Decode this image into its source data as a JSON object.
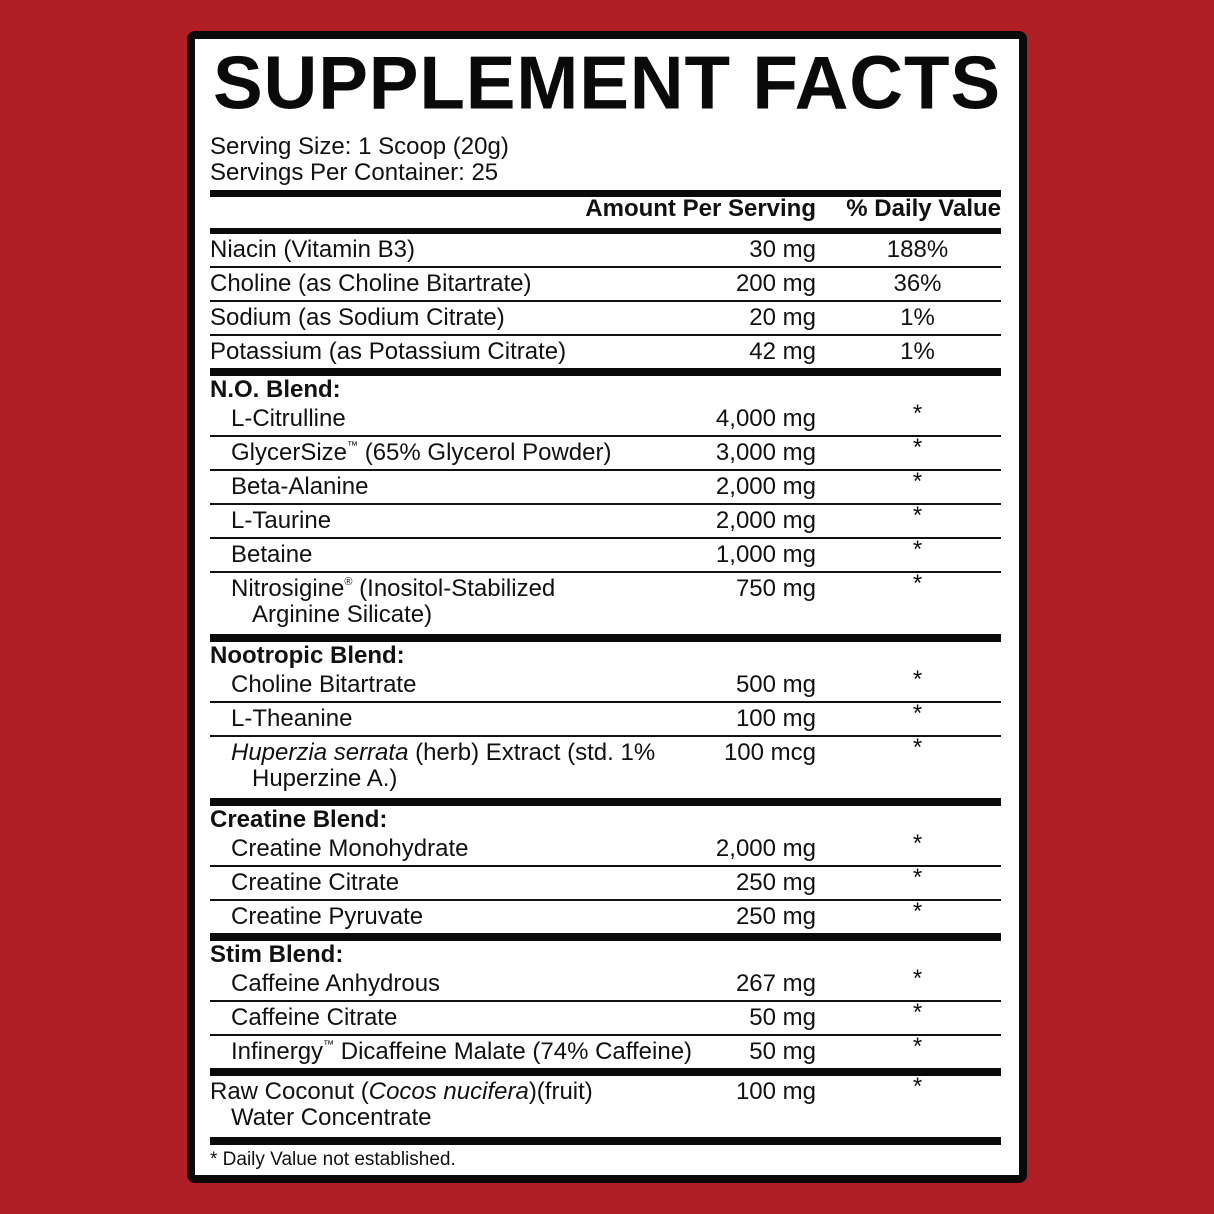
{
  "title": "SUPPLEMENT FACTS",
  "serving_size": "Serving Size: 1 Scoop (20g)",
  "servings_per_container": "Servings Per Container: 25",
  "header": {
    "amount": "Amount Per Serving",
    "dv": "% Daily Value"
  },
  "colors": {
    "background": "#b01f25",
    "panel": "#ffffff",
    "ink": "#0a0a0a"
  },
  "vitamins": [
    {
      "name": [
        [
          {
            "t": "Niacin (Vitamin B3)"
          }
        ]
      ],
      "amount": "30 mg",
      "dv": "188%"
    },
    {
      "name": [
        [
          {
            "t": "Choline (as Choline Bitartrate)"
          }
        ]
      ],
      "amount": "200 mg",
      "dv": "36%"
    },
    {
      "name": [
        [
          {
            "t": "Sodium (as Sodium Citrate)"
          }
        ]
      ],
      "amount": "20 mg",
      "dv": "1%"
    },
    {
      "name": [
        [
          {
            "t": "Potassium (as Potassium Citrate)"
          }
        ]
      ],
      "amount": "42 mg",
      "dv": "1%"
    }
  ],
  "blends": [
    {
      "title": "N.O. Blend:",
      "items": [
        {
          "name": [
            [
              {
                "t": "L-Citrulline"
              }
            ]
          ],
          "amount": "4,000 mg",
          "dv": "*"
        },
        {
          "name": [
            [
              {
                "t": "GlycerSize"
              },
              {
                "t": "™",
                "s": "sup"
              },
              {
                "t": " (65% Glycerol Powder)"
              }
            ]
          ],
          "amount": "3,000 mg",
          "dv": "*"
        },
        {
          "name": [
            [
              {
                "t": "Beta-Alanine"
              }
            ]
          ],
          "amount": "2,000 mg",
          "dv": "*"
        },
        {
          "name": [
            [
              {
                "t": "L-Taurine"
              }
            ]
          ],
          "amount": "2,000 mg",
          "dv": "*"
        },
        {
          "name": [
            [
              {
                "t": "Betaine"
              }
            ]
          ],
          "amount": "1,000 mg",
          "dv": "*"
        },
        {
          "name": [
            [
              {
                "t": "Nitrosigine"
              },
              {
                "t": "®",
                "s": "sup"
              },
              {
                "t": " (Inositol-Stabilized"
              }
            ],
            [
              {
                "t": "Arginine Silicate)"
              }
            ]
          ],
          "amount": "750 mg",
          "dv": "*"
        }
      ]
    },
    {
      "title": "Nootropic Blend:",
      "items": [
        {
          "name": [
            [
              {
                "t": "Choline Bitartrate"
              }
            ]
          ],
          "amount": "500 mg",
          "dv": "*"
        },
        {
          "name": [
            [
              {
                "t": "L-Theanine"
              }
            ]
          ],
          "amount": "100 mg",
          "dv": "*"
        },
        {
          "name": [
            [
              {
                "t": "Huperzia serrata",
                "s": "it"
              },
              {
                "t": " (herb) Extract (std. 1%"
              }
            ],
            [
              {
                "t": "Huperzine A.)"
              }
            ]
          ],
          "amount": "100 mcg",
          "dv": "*"
        }
      ]
    },
    {
      "title": "Creatine Blend:",
      "items": [
        {
          "name": [
            [
              {
                "t": "Creatine Monohydrate"
              }
            ]
          ],
          "amount": "2,000 mg",
          "dv": "*"
        },
        {
          "name": [
            [
              {
                "t": "Creatine Citrate"
              }
            ]
          ],
          "amount": "250 mg",
          "dv": "*"
        },
        {
          "name": [
            [
              {
                "t": "Creatine Pyruvate"
              }
            ]
          ],
          "amount": "250 mg",
          "dv": "*"
        }
      ]
    },
    {
      "title": "Stim Blend:",
      "items": [
        {
          "name": [
            [
              {
                "t": "Caffeine Anhydrous"
              }
            ]
          ],
          "amount": "267 mg",
          "dv": "*"
        },
        {
          "name": [
            [
              {
                "t": "Caffeine Citrate"
              }
            ]
          ],
          "amount": "50 mg",
          "dv": "*"
        },
        {
          "name": [
            [
              {
                "t": "Infinergy"
              },
              {
                "t": "™",
                "s": "sup"
              },
              {
                "t": " Dicaffeine Malate (74% Caffeine)"
              }
            ]
          ],
          "amount": "50 mg",
          "dv": "*"
        }
      ]
    }
  ],
  "other": [
    {
      "name": [
        [
          {
            "t": "Raw Coconut ("
          },
          {
            "t": "Cocos nucifera",
            "s": "it"
          },
          {
            "t": ")(fruit)"
          }
        ],
        [
          {
            "t": "Water Concentrate"
          }
        ]
      ],
      "amount": "100 mg",
      "dv": "*"
    }
  ],
  "footnote": "* Daily Value not established."
}
